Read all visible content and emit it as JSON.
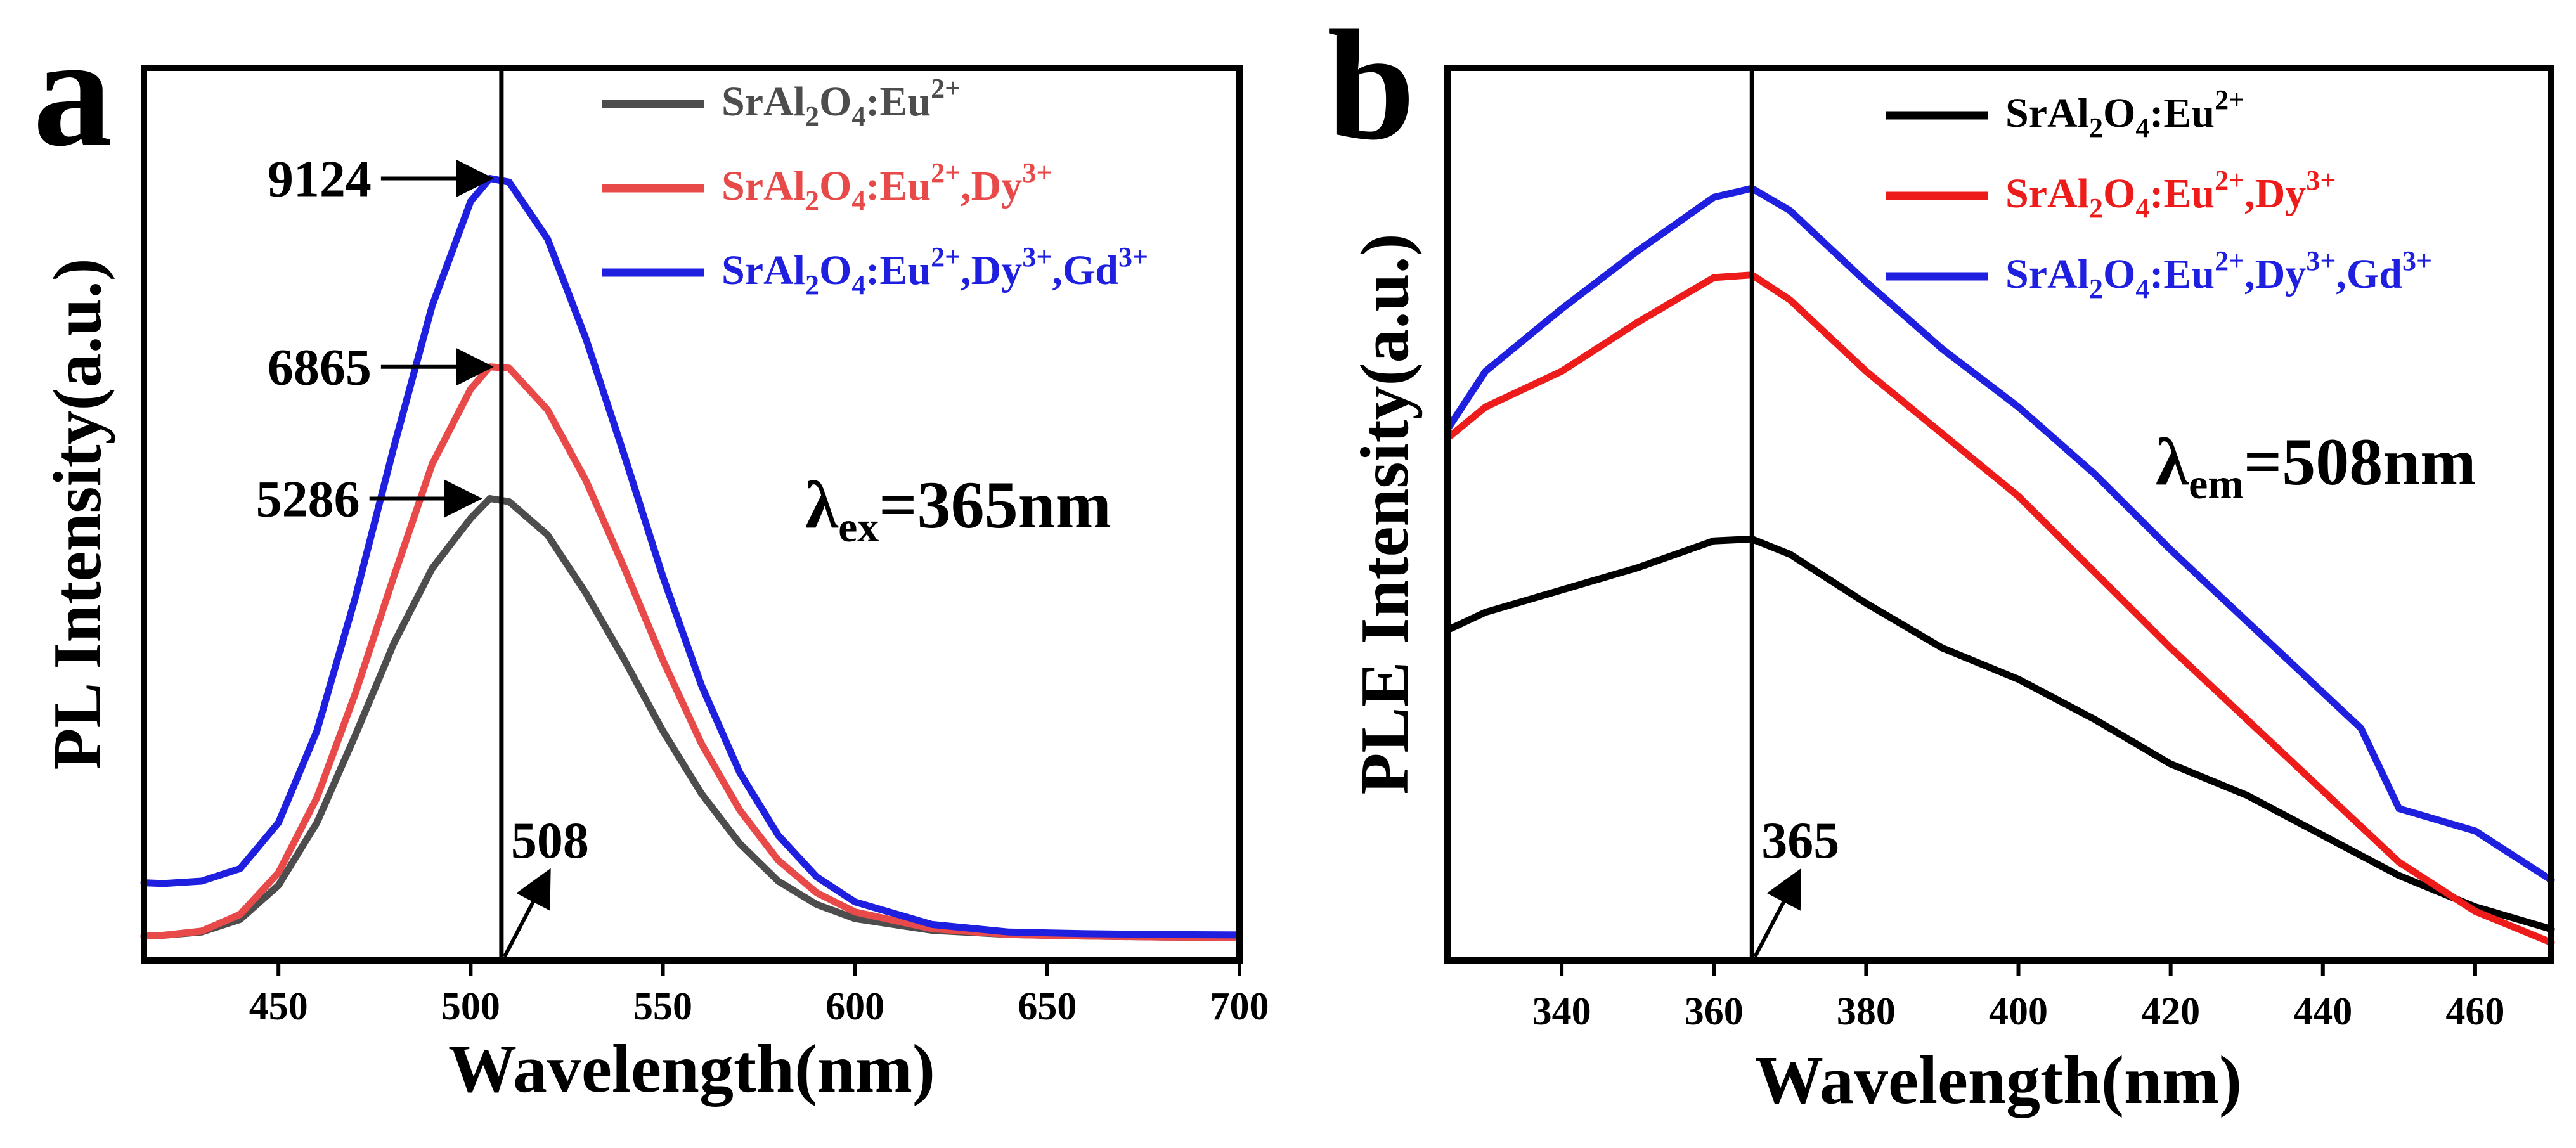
{
  "chart_data": [
    {
      "panel": "a",
      "type": "line",
      "xlabel": "Wavelength(nm)",
      "ylabel": "PL Intensity(a.u.)",
      "xlim": [
        415,
        700
      ],
      "ylim": [
        -250,
        10450
      ],
      "xticks": [
        450,
        500,
        550,
        600,
        650,
        700
      ],
      "vline": 508,
      "vline_label": "508",
      "condition": {
        "symbol": "λ",
        "sub": "ex",
        "value": "=365nm"
      },
      "peak_labels": [
        {
          "text": "9124",
          "x": 508,
          "y": 9124
        },
        {
          "text": "6865",
          "x": 508,
          "y": 6865
        },
        {
          "text": "5286",
          "x": 505,
          "y": 5286
        }
      ],
      "series": [
        {
          "name": "SrAl2O4:Eu2+",
          "label_base": "SrAl",
          "label_parts": [
            "2",
            "O",
            "4",
            ":Eu",
            "2+"
          ],
          "color": "#4d4d4d",
          "x": [
            415,
            420,
            430,
            440,
            450,
            460,
            470,
            480,
            490,
            500,
            505,
            510,
            520,
            530,
            540,
            550,
            560,
            570,
            580,
            590,
            600,
            620,
            640,
            660,
            680,
            700
          ],
          "y": [
            40,
            50,
            90,
            240,
            650,
            1400,
            2450,
            3550,
            4450,
            5050,
            5286,
            5250,
            4850,
            4150,
            3350,
            2500,
            1750,
            1150,
            700,
            420,
            250,
            110,
            60,
            40,
            30,
            25
          ]
        },
        {
          "name": "SrAl2O4:Eu2+,Dy3+",
          "label_base": "SrAl",
          "label_parts": [
            "2",
            "O",
            "4",
            ":Eu",
            "2+",
            ",Dy",
            "3+"
          ],
          "color": "#e84a4a",
          "x": [
            415,
            420,
            430,
            440,
            450,
            460,
            470,
            480,
            490,
            500,
            505,
            510,
            520,
            530,
            540,
            550,
            560,
            570,
            580,
            590,
            600,
            620,
            640,
            660,
            680,
            700
          ],
          "y": [
            40,
            50,
            100,
            300,
            800,
            1700,
            2950,
            4350,
            5700,
            6600,
            6865,
            6850,
            6350,
            5500,
            4450,
            3350,
            2350,
            1550,
            950,
            560,
            330,
            130,
            60,
            40,
            30,
            25
          ]
        },
        {
          "name": "SrAl2O4:Eu2+,Dy3+,Gd3+",
          "label_base": "SrAl",
          "label_parts": [
            "2",
            "O",
            "4",
            ":Eu",
            "2+",
            ",Dy",
            "3+",
            ",Gd",
            "3+"
          ],
          "color": "#1f1fe0",
          "x": [
            415,
            420,
            430,
            440,
            450,
            460,
            470,
            480,
            490,
            500,
            505,
            510,
            520,
            530,
            540,
            550,
            560,
            570,
            580,
            590,
            600,
            620,
            640,
            660,
            680,
            700
          ],
          "y": [
            680,
            670,
            700,
            850,
            1400,
            2500,
            4100,
            5900,
            7600,
            8850,
            9124,
            9080,
            8400,
            7200,
            5800,
            4350,
            3050,
            2000,
            1250,
            750,
            450,
            180,
            90,
            70,
            60,
            55
          ]
        }
      ]
    },
    {
      "panel": "b",
      "type": "line",
      "xlabel": "Wavelength(nm)",
      "ylabel": "PLE Intensity(a.u.)",
      "xlim": [
        325,
        470
      ],
      "ylim": [
        0,
        100
      ],
      "xticks": [
        340,
        360,
        380,
        400,
        420,
        440,
        460
      ],
      "vline": 365,
      "vline_label": "365",
      "condition": {
        "symbol": "λ",
        "sub": "em",
        "value": "=508nm"
      },
      "series": [
        {
          "name": "SrAl2O4:Eu2+",
          "label_base": "SrAl",
          "label_parts": [
            "2",
            "O",
            "4",
            ":Eu",
            "2+"
          ],
          "color": "#000000",
          "x": [
            325,
            330,
            340,
            350,
            360,
            365,
            370,
            380,
            390,
            400,
            410,
            420,
            430,
            440,
            450,
            460,
            470
          ],
          "y": [
            37,
            39,
            41.5,
            44,
            47,
            47.2,
            45.5,
            40,
            35,
            31.5,
            27,
            22,
            18.5,
            14,
            9.5,
            6,
            3.5
          ]
        },
        {
          "name": "SrAl2O4:Eu2+,Dy3+",
          "label_base": "SrAl",
          "label_parts": [
            "2",
            "O",
            "4",
            ":Eu",
            "2+",
            ",Dy",
            "3+"
          ],
          "color": "#ee1b1b",
          "x": [
            325,
            330,
            340,
            350,
            360,
            365,
            370,
            380,
            390,
            400,
            410,
            420,
            430,
            440,
            450,
            460,
            470
          ],
          "y": [
            58.5,
            62,
            66,
            71.5,
            76.5,
            76.8,
            74,
            66,
            59,
            52,
            43.5,
            35,
            27,
            19,
            11,
            5.5,
            2
          ]
        },
        {
          "name": "SrAl2O4:Eu2+,Dy3+,Gd3+",
          "label_base": "SrAl",
          "label_parts": [
            "2",
            "O",
            "4",
            ":Eu",
            "2+",
            ",Dy",
            "3+",
            ",Gd",
            "3+"
          ],
          "color": "#1f1fe0",
          "x": [
            325,
            330,
            340,
            350,
            360,
            365,
            370,
            380,
            390,
            400,
            410,
            420,
            430,
            440,
            445,
            450,
            460,
            470
          ],
          "y": [
            59.5,
            66,
            73,
            79.5,
            85.5,
            86.5,
            84,
            76,
            68.5,
            62,
            54.5,
            46,
            38,
            30,
            26,
            17,
            14.5,
            9
          ]
        }
      ]
    }
  ]
}
